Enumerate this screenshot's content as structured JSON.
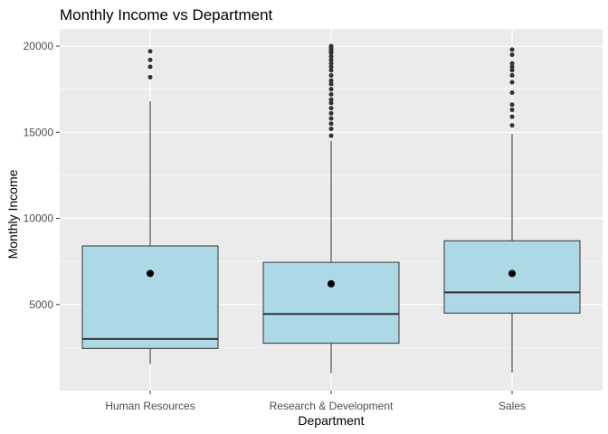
{
  "chart_data": {
    "type": "boxplot",
    "title": "Monthly Income vs Department",
    "xlabel": "Department",
    "ylabel": "Monthly Income",
    "ylim": [
      0,
      21000
    ],
    "y_ticks": [
      5000,
      10000,
      15000,
      20000
    ],
    "y_tick_labels": [
      "5000",
      "10000",
      "15000",
      "20000"
    ],
    "grid": true,
    "colors": {
      "panel": "#ebebeb",
      "grid": "#ffffff",
      "box_fill": "#add8e6",
      "box_stroke": "#333333",
      "point": "#333333",
      "tick_text": "#4d4d4d"
    },
    "categories": [
      "Human Resources",
      "Research & Development",
      "Sales"
    ],
    "boxes": [
      {
        "category": "Human Resources",
        "min": 1555,
        "q1": 2450,
        "median": 3000,
        "q3": 8400,
        "max": 16800,
        "mean": 6800,
        "outliers": [
          18200,
          18800,
          19200,
          19700
        ]
      },
      {
        "category": "Research & Development",
        "min": 1009,
        "q1": 2750,
        "median": 4450,
        "q3": 7450,
        "max": 14500,
        "mean": 6200,
        "outliers": [
          14800,
          15200,
          15500,
          15800,
          16100,
          16400,
          16700,
          16900,
          17200,
          17500,
          17800,
          18000,
          18300,
          18600,
          18800,
          19000,
          19200,
          19400,
          19600,
          19700,
          19800,
          19900,
          20000
        ]
      },
      {
        "category": "Sales",
        "min": 1052,
        "q1": 4500,
        "median": 5700,
        "q3": 8700,
        "max": 14900,
        "mean": 6800,
        "outliers": [
          15400,
          15900,
          16300,
          16600,
          17300,
          17900,
          18300,
          18600,
          18800,
          19000,
          19500,
          19800
        ]
      }
    ]
  }
}
